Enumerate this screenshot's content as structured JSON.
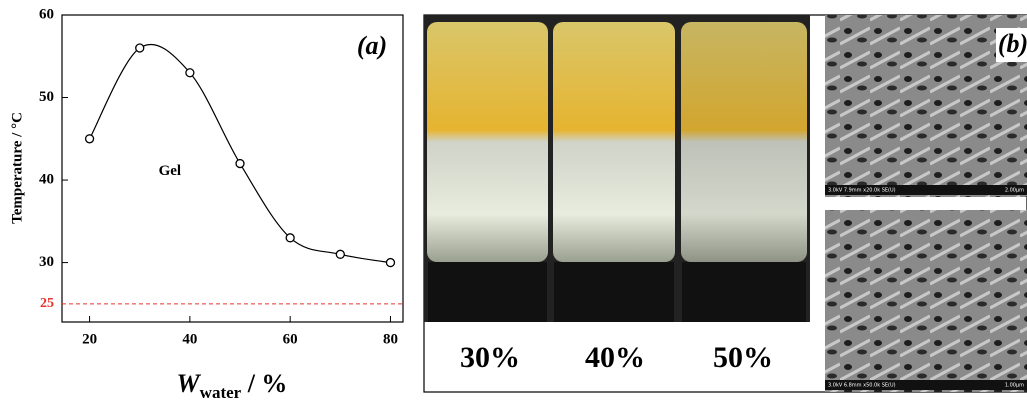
{
  "chart_data": {
    "type": "line",
    "title": "(a)",
    "x_label": {
      "symbol": "W",
      "subscript": "water",
      "unit": " / %"
    },
    "y_label": "Temperature / °C",
    "x": [
      20,
      30,
      40,
      50,
      60,
      70,
      80
    ],
    "series": [
      {
        "color": "#000000",
        "values": [
          45,
          56,
          53,
          42,
          33,
          31,
          30
        ]
      }
    ],
    "xlim": [
      14.5,
      82.5
    ],
    "ylim": [
      22.8,
      60
    ],
    "xticks": [
      20,
      40,
      60,
      80
    ],
    "yticks": [
      30,
      40,
      50,
      60
    ],
    "reference_line": {
      "value": 25,
      "color": "#e8322c"
    },
    "annotations": [
      {
        "text": "Gel",
        "x": 36,
        "y": 41
      }
    ]
  },
  "photos": {
    "labels": [
      "30%",
      "40%",
      "50%"
    ]
  },
  "sem": {
    "label": "(b)",
    "images": [
      {
        "info": "3.0kV 7.9mm x20.0k SE(U)",
        "scale": "2.00μm"
      },
      {
        "info": "3.0kV 6.8mm x50.0k SE(U)",
        "scale": "1.00μm"
      }
    ]
  }
}
